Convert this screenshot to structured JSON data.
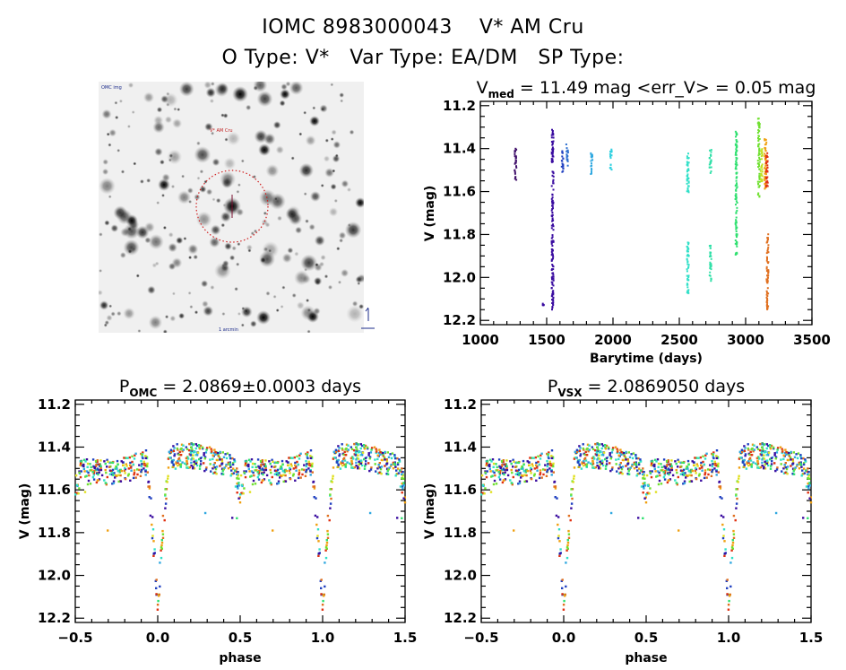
{
  "header": {
    "object_id": "IOMC 8983000043",
    "object_name": "V* AM Cru",
    "o_type_label": "O Type:",
    "o_type_value": "V*",
    "var_type_label": "Var Type:",
    "var_type_value": "EA/DM",
    "sp_type_label": "SP Type:",
    "sp_type_value": ""
  },
  "sky_image": {
    "description": "grayscale star field finder chart with dotted red circle around target star",
    "circle_color": "#d02020",
    "label_top_left": "OMC img",
    "label_center_top": "V* AM Cru",
    "label_bottom_center": "1 arcmin",
    "compass": "north-east arrows"
  },
  "chart_data": [
    {
      "type": "scatter",
      "id": "lightcurve",
      "title": "V_med = 11.49 mag <err_V> = 0.05 mag",
      "title_main": "V",
      "title_sub": "med",
      "title_rest": " = 11.49 mag <err_V> = 0.05 mag",
      "xlabel": "Barytime (days)",
      "ylabel": "V (mag)",
      "xlim": [
        1000,
        3500
      ],
      "ylim": [
        12.22,
        11.18
      ],
      "y_inverted": true,
      "xticks": [
        1000,
        1500,
        2000,
        2500,
        3000,
        3500
      ],
      "yticks": [
        11.2,
        11.4,
        11.6,
        11.8,
        12.0,
        12.2
      ],
      "ytick_labels": [
        "11.2",
        "11.4",
        "11.6",
        "11.8",
        "12.0",
        "12.2"
      ],
      "colormap": "rainbow by time (purple → blue → cyan → green → yellow → orange → red)",
      "clusters": [
        {
          "x": 1265,
          "ymin": 11.4,
          "ymax": 11.55,
          "color": "#40106a"
        },
        {
          "x": 1545,
          "ymin": 11.3,
          "ymax": 12.15,
          "color": "#3a0ca0"
        },
        {
          "x": 1475,
          "ymin": 12.12,
          "ymax": 12.13,
          "color": "#3a0ca0"
        },
        {
          "x": 1620,
          "ymin": 11.41,
          "ymax": 11.51,
          "color": "#2040c0"
        },
        {
          "x": 1655,
          "ymin": 11.38,
          "ymax": 11.48,
          "color": "#2e70d0"
        },
        {
          "x": 1840,
          "ymin": 11.41,
          "ymax": 11.52,
          "color": "#30a8e0"
        },
        {
          "x": 1985,
          "ymin": 11.4,
          "ymax": 11.5,
          "color": "#30d0e0"
        },
        {
          "x": 2565,
          "ymin": 11.41,
          "ymax": 11.61,
          "color": "#30e0c8"
        },
        {
          "x": 2565,
          "ymin": 11.83,
          "ymax": 12.08,
          "color": "#30e0c8"
        },
        {
          "x": 2735,
          "ymin": 11.4,
          "ymax": 11.52,
          "color": "#30e0a8"
        },
        {
          "x": 2735,
          "ymin": 11.85,
          "ymax": 12.02,
          "color": "#30e0a8"
        },
        {
          "x": 2930,
          "ymin": 11.32,
          "ymax": 11.9,
          "color": "#30e070"
        },
        {
          "x": 3100,
          "ymin": 11.26,
          "ymax": 11.63,
          "color": "#70e030"
        },
        {
          "x": 3120,
          "ymin": 11.4,
          "ymax": 11.56,
          "color": "#c0e020"
        },
        {
          "x": 3150,
          "ymin": 11.34,
          "ymax": 11.59,
          "color": "#f0a010"
        },
        {
          "x": 3160,
          "ymin": 11.42,
          "ymax": 11.58,
          "color": "#e03010"
        },
        {
          "x": 3165,
          "ymin": 11.79,
          "ymax": 12.15,
          "color": "#e07020"
        }
      ]
    },
    {
      "type": "scatter",
      "id": "phase-omc",
      "title_main": "P",
      "title_sub": "OMC",
      "title_rest": " = 2.0869±0.0003 days",
      "period_days": 2.0869,
      "period_err_days": 0.0003,
      "xlabel": "phase",
      "ylabel": "V (mag)",
      "xlim": [
        -0.5,
        1.5
      ],
      "ylim": [
        12.22,
        11.18
      ],
      "y_inverted": true,
      "xticks": [
        -0.5,
        0.0,
        0.5,
        1.0,
        1.5
      ],
      "xtick_labels": [
        "−0.5",
        "0.0",
        "0.5",
        "1.0",
        "1.5"
      ],
      "yticks": [
        11.2,
        11.4,
        11.6,
        11.8,
        12.0,
        12.2
      ],
      "ytick_labels": [
        "11.2",
        "11.4",
        "11.6",
        "11.8",
        "12.0",
        "12.2"
      ],
      "light_curve": {
        "out_of_eclipse_mag": 11.48,
        "primary_eclipse_phase": 0.0,
        "primary_eclipse_depth_mag": 12.15,
        "eclipse_half_width_phase": 0.07,
        "secondary_dip_phase": 0.5,
        "secondary_dip_mag": 11.62
      }
    },
    {
      "type": "scatter",
      "id": "phase-vsx",
      "title_main": "P",
      "title_sub": "VSX",
      "title_rest": " = 2.0869050 days",
      "period_days": 2.086905,
      "xlabel": "phase",
      "ylabel": "V (mag)",
      "xlim": [
        -0.5,
        1.5
      ],
      "ylim": [
        12.22,
        11.18
      ],
      "y_inverted": true,
      "xticks": [
        -0.5,
        0.0,
        0.5,
        1.0,
        1.5
      ],
      "xtick_labels": [
        "−0.5",
        "0.0",
        "0.5",
        "1.0",
        "1.5"
      ],
      "yticks": [
        11.2,
        11.4,
        11.6,
        11.8,
        12.0,
        12.2
      ],
      "ytick_labels": [
        "11.2",
        "11.4",
        "11.6",
        "11.8",
        "12.0",
        "12.2"
      ],
      "light_curve": {
        "out_of_eclipse_mag": 11.48,
        "primary_eclipse_phase": 0.0,
        "primary_eclipse_depth_mag": 12.15,
        "eclipse_half_width_phase": 0.07,
        "secondary_dip_phase": 0.5,
        "secondary_dip_mag": 11.62
      }
    }
  ],
  "xtick_labels_time": [
    "1000",
    "1500",
    "2000",
    "2500",
    "3000",
    "3500"
  ],
  "palette": [
    "#3a0ca0",
    "#2040c0",
    "#30a8e0",
    "#30e0c8",
    "#30e070",
    "#70e030",
    "#e0e020",
    "#f0a010",
    "#e07020",
    "#e03010"
  ]
}
